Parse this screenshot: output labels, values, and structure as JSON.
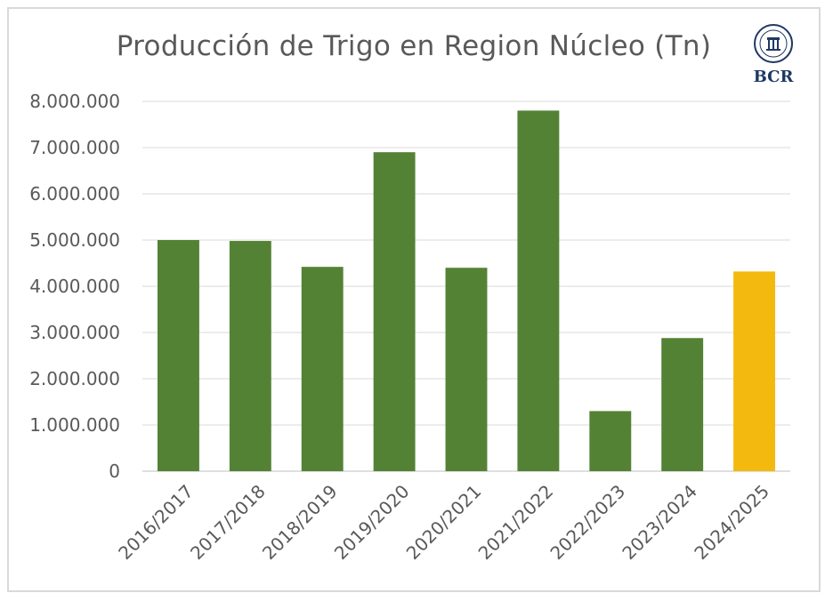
{
  "chart_data": {
    "type": "bar",
    "title": "Producción de Trigo en Region Núcleo (Tn)",
    "categories": [
      "2016/2017",
      "2017/2018",
      "2018/2019",
      "2019/2020",
      "2020/2021",
      "2021/2022",
      "2022/2023",
      "2023/2024",
      "2024/2025"
    ],
    "values": [
      5000000,
      4980000,
      4420000,
      6900000,
      4400000,
      7800000,
      1300000,
      2880000,
      4320000
    ],
    "bar_colors": [
      "#548235",
      "#548235",
      "#548235",
      "#548235",
      "#548235",
      "#548235",
      "#548235",
      "#548235",
      "#f4b90f"
    ],
    "ylim": [
      0,
      8000000
    ],
    "yticks": [
      0,
      1000000,
      2000000,
      3000000,
      4000000,
      5000000,
      6000000,
      7000000,
      8000000
    ],
    "ytick_labels": [
      "0",
      "1.000.000",
      "2.000.000",
      "3.000.000",
      "4.000.000",
      "5.000.000",
      "6.000.000",
      "7.000.000",
      "8.000.000"
    ],
    "grid": true,
    "legend": "none"
  },
  "logo": {
    "text": "BCR"
  },
  "colors": {
    "gridline": "#d9d9d9",
    "text": "#595959",
    "brand": "#1f3864"
  }
}
